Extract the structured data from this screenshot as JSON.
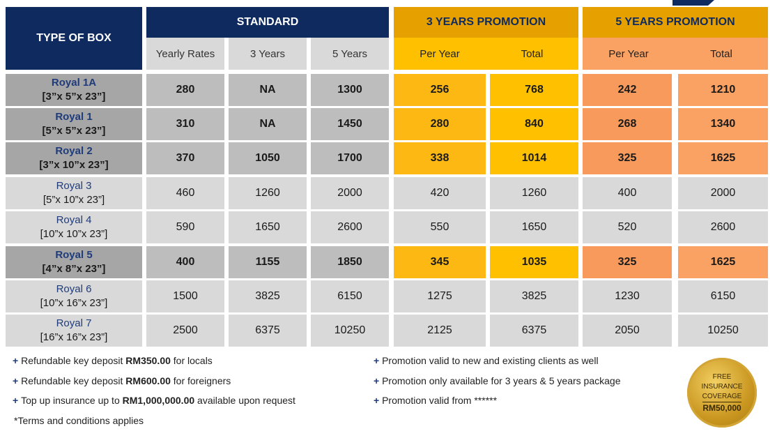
{
  "header": {
    "type_of_box": "TYPE OF BOX",
    "standard": "STANDARD",
    "promo3": "3 YEARS PROMOTION",
    "promo5": "5 YEARS PROMOTION",
    "sub": {
      "yearly_rates": "Yearly Rates",
      "three_years": "3 Years",
      "five_years": "5 Years",
      "per_year_3": "Per Year",
      "total_3": "Total",
      "per_year_5": "Per Year",
      "total_5": "Total"
    }
  },
  "rows": [
    {
      "name": "Royal 1A",
      "size": "[3”x 5”x 23”]",
      "bold": true,
      "shade": "dark",
      "yearly": "280",
      "y3": "NA",
      "y5": "1300",
      "p3": "256",
      "t3": "768",
      "p5": "242",
      "t5": "1210"
    },
    {
      "name": "Royal 1",
      "size": "[5”x 5”x 23”]",
      "bold": true,
      "shade": "dark",
      "yearly": "310",
      "y3": "NA",
      "y5": "1450",
      "p3": "280",
      "t3": "840",
      "p5": "268",
      "t5": "1340"
    },
    {
      "name": "Royal 2",
      "size": "[3”x 10”x 23”]",
      "bold": true,
      "shade": "dark",
      "yearly": "370",
      "y3": "1050",
      "y5": "1700",
      "p3": "338",
      "t3": "1014",
      "p5": "325",
      "t5": "1625"
    },
    {
      "name": "Royal 3",
      "size": "[5”x 10”x 23”]",
      "bold": false,
      "shade": "light",
      "yearly": "460",
      "y3": "1260",
      "y5": "2000",
      "p3": "420",
      "t3": "1260",
      "p5": "400",
      "t5": "2000"
    },
    {
      "name": "Royal 4",
      "size": "[10”x 10”x 23”]",
      "bold": false,
      "shade": "light",
      "yearly": "590",
      "y3": "1650",
      "y5": "2600",
      "p3": "550",
      "t3": "1650",
      "p5": "520",
      "t5": "2600"
    },
    {
      "name": "Royal 5",
      "size": "[4”x 8”x 23”]",
      "bold": true,
      "shade": "dark",
      "yearly": "400",
      "y3": "1155",
      "y5": "1850",
      "p3": "345",
      "t3": "1035",
      "p5": "325",
      "t5": "1625"
    },
    {
      "name": "Royal 6",
      "size": "[10”x 16”x 23”]",
      "bold": false,
      "shade": "light",
      "yearly": "1500",
      "y3": "3825",
      "y5": "6150",
      "p3": "1275",
      "t3": "3825",
      "p5": "1230",
      "t5": "6150"
    },
    {
      "name": "Royal 7",
      "size": "[16”x 16”x 23”]",
      "bold": false,
      "shade": "light",
      "yearly": "2500",
      "y3": "6375",
      "y5": "10250",
      "p3": "2125",
      "t3": "6375",
      "p5": "2050",
      "t5": "10250"
    }
  ],
  "notes_left": [
    {
      "prefix": "+ ",
      "pre": "Refundable key deposit ",
      "bold": "RM350.00",
      "post": " for locals"
    },
    {
      "prefix": "+ ",
      "pre": "Refundable key deposit ",
      "bold": "RM600.00",
      "post": " for foreigners"
    },
    {
      "prefix": "+ ",
      "pre": "Top up insurance up to ",
      "bold": "RM1,000,000.00",
      "post": " available upon request"
    },
    {
      "prefix": "",
      "pre": "*Terms and conditions applies",
      "bold": "",
      "post": ""
    }
  ],
  "notes_right": [
    {
      "prefix": "+ ",
      "text": "Promotion valid to new and existing clients as well"
    },
    {
      "prefix": "+ ",
      "text": "Promotion only available for 3 years & 5 years package"
    },
    {
      "prefix": "+ ",
      "text": "Promotion valid from ******"
    }
  ],
  "badge": {
    "line1": "FREE",
    "line2": "INSURANCE",
    "line3": "COVERAGE",
    "amount": "RM50,000"
  }
}
